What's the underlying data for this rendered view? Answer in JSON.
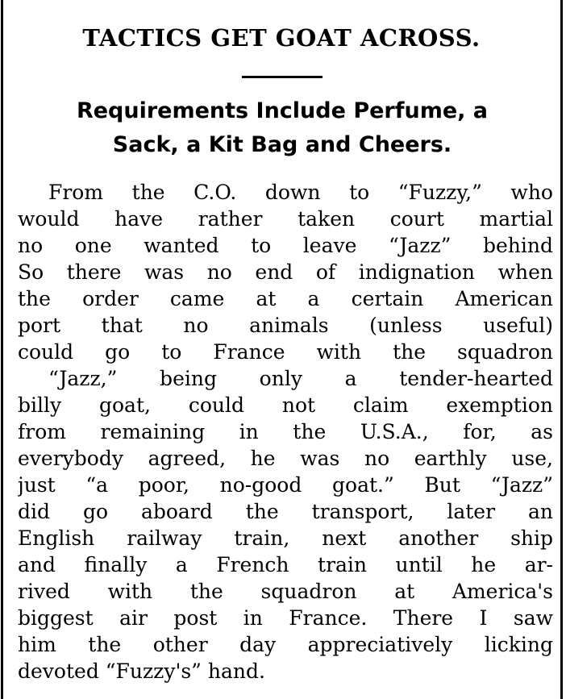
{
  "article": {
    "headline": "TACTICS GET GOAT ACROSS.",
    "subhead": [
      "Requirements Include Perfume, a",
      "Sack, a Kit Bag and Cheers."
    ],
    "paragraphs": [
      [
        "From the C.O. down to “Fuzzy,” who",
        "would have rather taken court martial",
        "no one wanted to leave “Jazz” behind",
        "So there was no end of indignation when",
        "the order came at a certain American",
        "port that no animals (unless useful)",
        "could go to France with the squadron"
      ],
      [
        "“Jazz,” being only a tender-hearted",
        "billy goat, could not claim exemption",
        "from remaining in the U.S.A., for, as",
        "everybody agreed, he was no earthly use,",
        "just “a poor, no-good goat.” But “Jazz”",
        "did go aboard the transport, later an",
        "English railway train, next another ship",
        "and finally a French train until he ar-",
        "rived with the squadron at America's",
        "biggest air post in France. There I saw",
        "him the other day appreciatively licking",
        "devoted “Fuzzy's” hand."
      ]
    ]
  }
}
